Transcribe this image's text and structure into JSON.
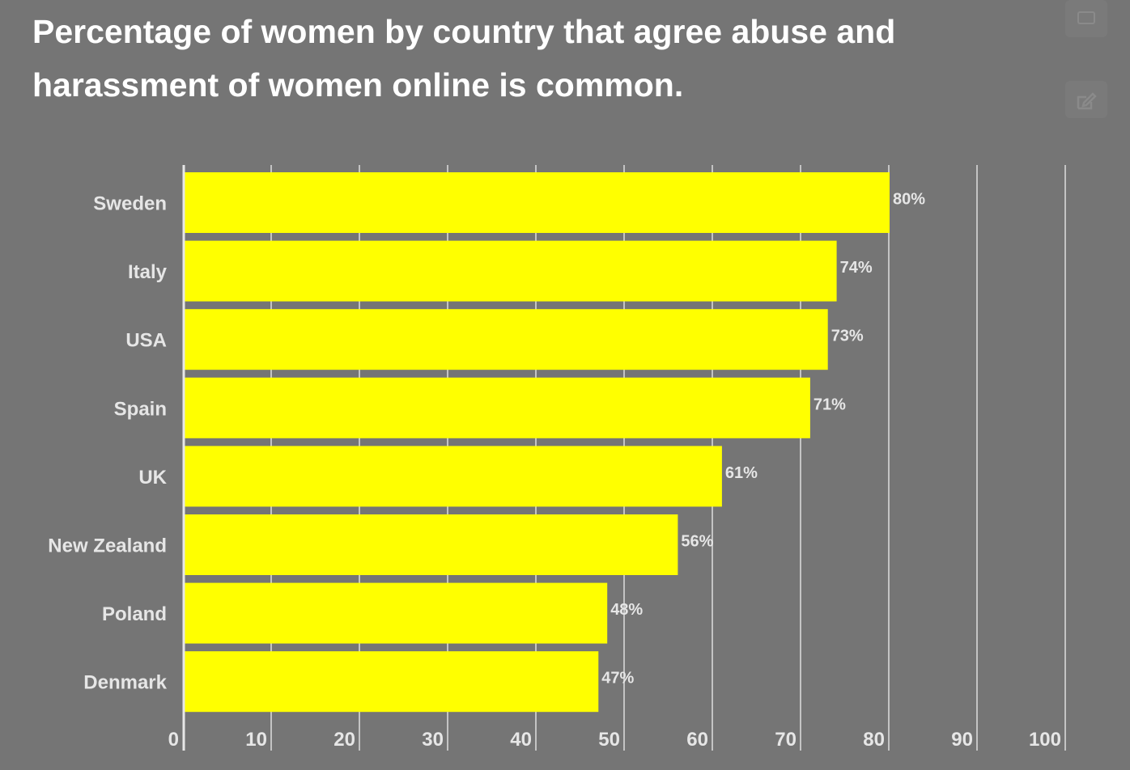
{
  "title": "Percentage of women by country that agree abuse and harassment of women online is common.",
  "controls": [
    {
      "icon": "share-icon"
    },
    {
      "icon": "edit-icon"
    }
  ],
  "colors": {
    "background": "#757575",
    "bar": "#ffff00",
    "text": "#e6e6e6",
    "grid": "#c4c4c4"
  },
  "chart_data": {
    "type": "bar",
    "orientation": "horizontal",
    "title": "Percentage of women by country that agree abuse and harassment of women online is common.",
    "categories": [
      "Sweden",
      "Italy",
      "USA",
      "Spain",
      "UK",
      "New Zealand",
      "Poland",
      "Denmark"
    ],
    "values": [
      80,
      74,
      73,
      71,
      61,
      56,
      48,
      47
    ],
    "data_labels": [
      "80%",
      "74%",
      "73%",
      "71%",
      "61%",
      "56%",
      "48%",
      "47%"
    ],
    "x_ticks": [
      0,
      10,
      20,
      30,
      40,
      50,
      60,
      70,
      80,
      90,
      100
    ],
    "xlim": [
      0,
      100
    ],
    "xlabel": "",
    "ylabel": "",
    "grid": true,
    "legend": "none"
  }
}
